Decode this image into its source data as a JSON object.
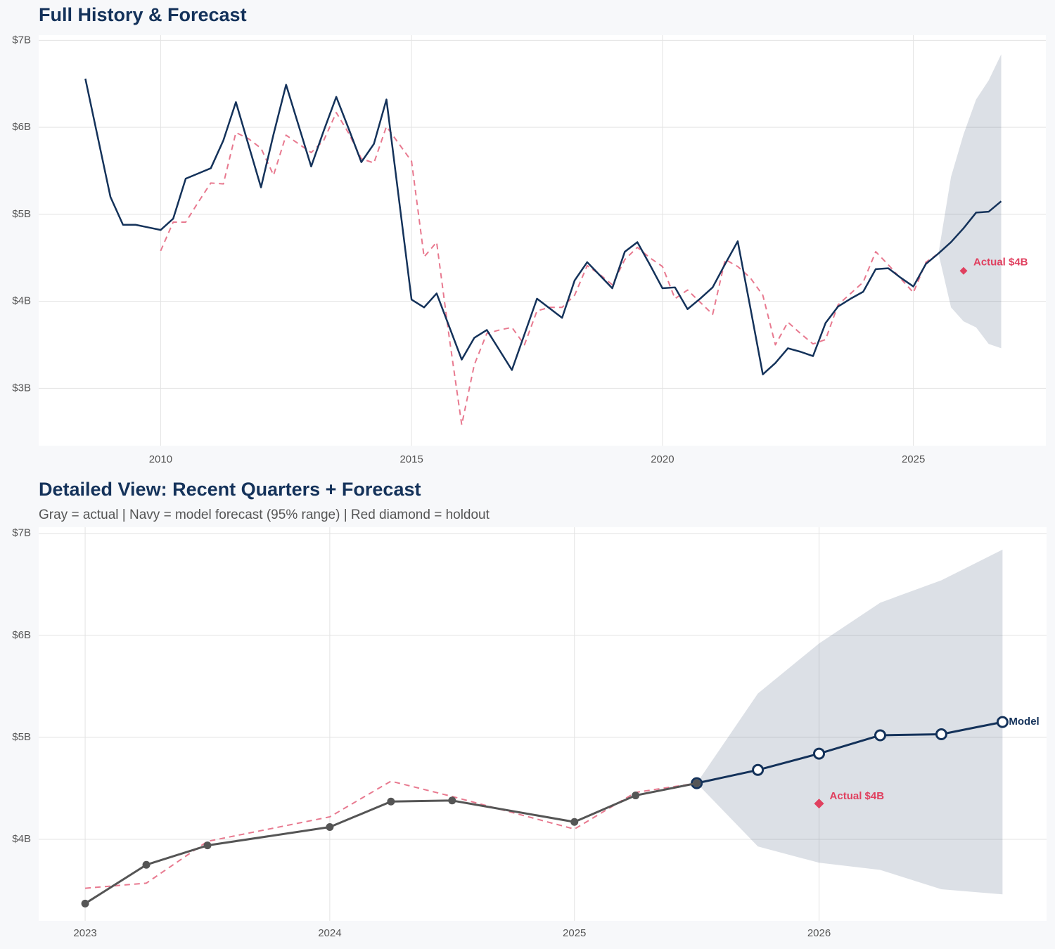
{
  "chart_data": [
    {
      "type": "line",
      "title": "Full History & Forecast",
      "xlim": [
        2007.57,
        2027.64
      ],
      "xticks": [
        2010,
        2015,
        2020,
        2025
      ],
      "ylim": [
        2.34,
        7.06
      ],
      "yticks": [
        {
          "value": 3,
          "label": "$3B"
        },
        {
          "value": 4,
          "label": "$4B"
        },
        {
          "value": 5,
          "label": "$5B"
        },
        {
          "value": 6,
          "label": "$6B"
        },
        {
          "value": 7,
          "label": "$7B"
        }
      ],
      "grid": true,
      "band": {
        "color": "#14325a",
        "x": [
          2025.5,
          2025.75,
          2026,
          2026.25,
          2026.5,
          2026.75
        ],
        "upper": [
          4.55,
          5.43,
          5.92,
          6.32,
          6.54,
          6.84
        ],
        "lower": [
          4.55,
          3.93,
          3.77,
          3.7,
          3.51,
          3.46
        ]
      },
      "series": [
        {
          "color": "#e8798f",
          "style": "dashed",
          "x": [
            2010,
            2010.25,
            2010.5,
            2010.75,
            2011,
            2011.25,
            2011.5,
            2011.75,
            2012,
            2012.25,
            2012.5,
            2012.75,
            2013,
            2013.25,
            2013.5,
            2013.75,
            2014,
            2014.25,
            2014.5,
            2014.75,
            2015,
            2015.25,
            2015.5,
            2015.75,
            2016,
            2016.25,
            2016.5,
            2016.75,
            2017,
            2017.25,
            2017.5,
            2017.75,
            2018,
            2018.25,
            2018.5,
            2018.75,
            2019,
            2019.25,
            2019.5,
            2019.75,
            2020,
            2020.25,
            2020.5,
            2020.75,
            2021,
            2021.25,
            2021.5,
            2021.75,
            2022,
            2022.25,
            2022.5,
            2022.75,
            2023,
            2023.25,
            2023.5,
            2023.75,
            2024,
            2024.25,
            2024.5,
            2024.75,
            2025,
            2025.25,
            2025.5
          ],
          "values": [
            4.58,
            4.91,
            4.91,
            5.14,
            5.36,
            5.35,
            5.94,
            5.87,
            5.76,
            5.45,
            5.91,
            5.81,
            5.71,
            5.85,
            6.17,
            5.93,
            5.64,
            5.59,
            6.01,
            5.81,
            5.61,
            4.51,
            4.68,
            3.59,
            2.58,
            3.27,
            3.63,
            3.67,
            3.7,
            3.5,
            3.89,
            3.93,
            3.93,
            4.07,
            4.41,
            4.31,
            4.19,
            4.48,
            4.62,
            4.5,
            4.4,
            4.03,
            4.13,
            3.99,
            3.85,
            4.48,
            4.4,
            4.27,
            4.07,
            3.5,
            3.76,
            3.63,
            3.51,
            3.56,
            3.96,
            4.09,
            4.22,
            4.57,
            4.42,
            4.26,
            4.1,
            4.45,
            4.55
          ]
        },
        {
          "color": "#14325a",
          "style": "solid",
          "x": [
            2008.5,
            2008.75,
            2009,
            2009.25,
            2009.5,
            2009.75,
            2010,
            2010.25,
            2010.5,
            2010.75,
            2011,
            2011.25,
            2011.5,
            2011.75,
            2012,
            2012.25,
            2012.5,
            2012.75,
            2013,
            2013.25,
            2013.5,
            2013.75,
            2014,
            2014.25,
            2014.5,
            2014.75,
            2015,
            2015.25,
            2015.5,
            2015.75,
            2016,
            2016.25,
            2016.5,
            2016.75,
            2017,
            2017.25,
            2017.5,
            2017.75,
            2018,
            2018.25,
            2018.5,
            2018.75,
            2019,
            2019.25,
            2019.5,
            2019.75,
            2020,
            2020.25,
            2020.5,
            2020.75,
            2021,
            2021.25,
            2021.5,
            2021.75,
            2022,
            2022.25,
            2022.5,
            2022.75,
            2023,
            2023.25,
            2023.5,
            2023.75,
            2024,
            2024.25,
            2024.5,
            2024.75,
            2025,
            2025.25,
            2025.5,
            2025.75,
            2026,
            2026.25,
            2026.5,
            2026.75
          ],
          "values": [
            6.56,
            5.88,
            5.2,
            4.88,
            4.88,
            4.85,
            4.82,
            4.95,
            5.41,
            5.47,
            5.53,
            5.85,
            6.29,
            5.8,
            5.31,
            5.92,
            6.49,
            6.02,
            5.55,
            5.96,
            6.35,
            5.98,
            5.6,
            5.81,
            6.32,
            5.17,
            4.02,
            3.93,
            4.09,
            3.71,
            3.33,
            3.58,
            3.67,
            3.44,
            3.21,
            3.62,
            4.03,
            3.92,
            3.81,
            4.24,
            4.45,
            4.3,
            4.15,
            4.57,
            4.68,
            4.42,
            4.15,
            4.16,
            3.91,
            4.03,
            4.16,
            4.43,
            4.69,
            3.93,
            3.16,
            3.29,
            3.46,
            3.42,
            3.37,
            3.75,
            3.94,
            4.03,
            4.11,
            4.37,
            4.38,
            4.27,
            4.17,
            4.43,
            4.55,
            4.68,
            4.84,
            5.02,
            5.03,
            5.15
          ]
        }
      ],
      "holdout": {
        "x": 2026,
        "value": 4.35,
        "label": "Actual $4B",
        "color": "#e0405f"
      }
    },
    {
      "type": "line",
      "title": "Detailed View: Recent Quarters + Forecast",
      "subtitle": "Gray = actual  |  Navy = model forecast (95% range)  |  Red diamond = holdout",
      "xlim": [
        2022.81,
        2026.93
      ],
      "xticks": [
        2023,
        2024,
        2025,
        2026
      ],
      "ylim": [
        3.2,
        7.06
      ],
      "yticks": [
        {
          "value": 4,
          "label": "$4B"
        },
        {
          "value": 5,
          "label": "$5B"
        },
        {
          "value": 6,
          "label": "$6B"
        },
        {
          "value": 7,
          "label": "$7B"
        }
      ],
      "grid": true,
      "band": {
        "color": "#14325a",
        "x": [
          2025.5,
          2025.75,
          2026,
          2026.25,
          2026.5,
          2026.75
        ],
        "upper": [
          4.55,
          5.43,
          5.92,
          6.32,
          6.54,
          6.84
        ],
        "lower": [
          4.55,
          3.93,
          3.77,
          3.7,
          3.51,
          3.46
        ]
      },
      "series": [
        {
          "color": "#e8798f",
          "style": "dashed",
          "x": [
            2023,
            2023.25,
            2023.5,
            2024,
            2024.25,
            2024.5,
            2025,
            2025.25,
            2025.5
          ],
          "values": [
            3.52,
            3.57,
            3.98,
            4.22,
            4.57,
            4.42,
            4.1,
            4.46,
            4.55
          ]
        },
        {
          "color": "#14325a",
          "style": "solid",
          "marker": "open",
          "end_label": "Model",
          "x": [
            2025.5,
            2025.75,
            2026,
            2026.25,
            2026.5,
            2026.75
          ],
          "values": [
            4.55,
            4.68,
            4.84,
            5.02,
            5.03,
            5.15
          ]
        },
        {
          "color": "#555555",
          "style": "solid",
          "marker": "filled",
          "x": [
            2023,
            2023.25,
            2023.5,
            2024,
            2024.25,
            2024.5,
            2025,
            2025.25,
            2025.5
          ],
          "values": [
            3.37,
            3.75,
            3.94,
            4.12,
            4.37,
            4.38,
            4.17,
            4.43,
            4.55
          ]
        }
      ],
      "holdout": {
        "x": 2026,
        "value": 4.35,
        "label": "Actual $4B",
        "color": "#e0405f"
      }
    }
  ]
}
